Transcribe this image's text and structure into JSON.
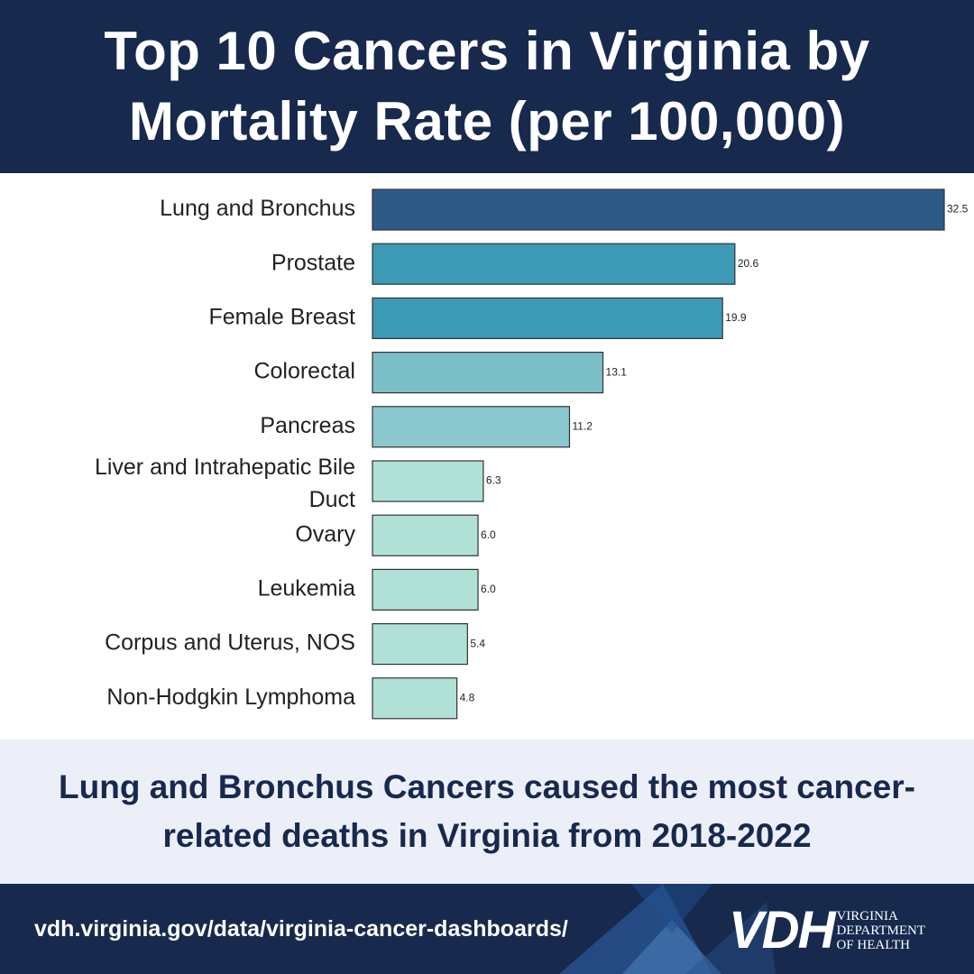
{
  "header": {
    "title": "Top 10 Cancers in Virginia by Mortality Rate (per 100,000)"
  },
  "chart_data": {
    "type": "bar",
    "orientation": "horizontal",
    "title": "Top 10 Cancers in Virginia by Mortality Rate (per 100,000)",
    "categories": [
      "Lung and Bronchus",
      "Prostate",
      "Female Breast",
      "Colorectal",
      "Pancreas",
      "Liver and Intrahepatic Bile Duct",
      "Ovary",
      "Leukemia",
      "Corpus and Uterus, NOS",
      "Non-Hodgkin Lymphoma"
    ],
    "values": [
      32.5,
      20.6,
      19.9,
      13.1,
      11.2,
      6.3,
      6.0,
      6.0,
      5.4,
      4.8
    ],
    "value_labels": [
      "32.5",
      "20.6",
      "19.9",
      "13.1",
      "11.2",
      "6.3",
      "6.0",
      "6.0",
      "5.4",
      "4.8"
    ],
    "colors": [
      "#2e5a88",
      "#3d9ab5",
      "#3d9ab5",
      "#7bbfc8",
      "#8bc7ce",
      "#b1e0d7",
      "#b1e0d7",
      "#b1e0d7",
      "#b1e0d7",
      "#b1e0d7"
    ],
    "xlim": [
      0,
      32.5
    ],
    "grid": false,
    "legend": "none",
    "xlabel": "",
    "ylabel": ""
  },
  "callout": {
    "text": "Lung and Bronchus Cancers caused the most cancer-related deaths in Virginia from 2018-2022"
  },
  "footer": {
    "url": "vdh.virginia.gov/data/virginia-cancer-dashboards/",
    "logo_mark": "VDH",
    "logo_lines": [
      "VIRGINIA",
      "DEPARTMENT",
      "OF HEALTH"
    ]
  },
  "colors": {
    "navy": "#17294d",
    "callout_bg": "#eceef8",
    "bar_outline": "#333333"
  }
}
